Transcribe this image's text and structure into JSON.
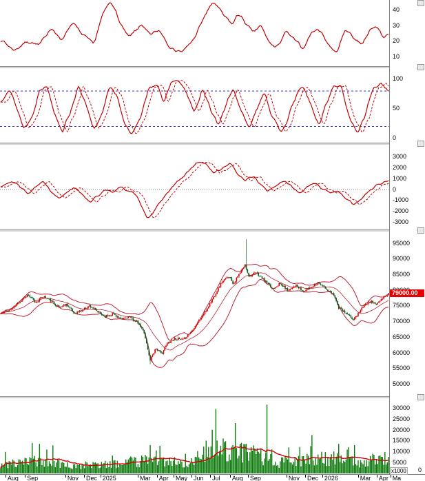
{
  "colors": {
    "line_red": "#c00000",
    "ref_blue": "#3333bb",
    "separator": "#909090",
    "axis_border": "#808080",
    "background": "#ffffff",
    "text": "#000000"
  },
  "price_label": {
    "text": "79000.00",
    "bg": "#e60000",
    "fg": "#ffffff"
  },
  "volume_axis": {
    "unit": "x1000",
    "zero": "0"
  },
  "x_axis": {
    "labels": [
      {
        "t": "Aug",
        "f": 0.014
      },
      {
        "t": "Sep",
        "f": 0.064
      },
      {
        "t": "Nov",
        "f": 0.168
      },
      {
        "t": "Dec",
        "f": 0.216
      },
      {
        "t": "2025",
        "f": 0.258
      },
      {
        "t": "Mar",
        "f": 0.354
      },
      {
        "t": "Apr",
        "f": 0.403
      },
      {
        "t": "May",
        "f": 0.446
      },
      {
        "t": "Jun",
        "f": 0.492
      },
      {
        "t": "Jul",
        "f": 0.54
      },
      {
        "t": "Aug",
        "f": 0.591
      },
      {
        "t": "Sep",
        "f": 0.637
      },
      {
        "t": "Nov",
        "f": 0.736
      },
      {
        "t": "Dec",
        "f": 0.784
      },
      {
        "t": "2026",
        "f": 0.828
      },
      {
        "t": "Mar",
        "f": 0.92
      },
      {
        "t": "Apr",
        "f": 0.968
      },
      {
        "t": "Ma",
        "f": 1.003
      }
    ]
  },
  "chart_data": [
    {
      "type": "line",
      "name": "momentum-indicator",
      "ylim": [
        4,
        46
      ],
      "ticks": [
        40,
        30,
        20,
        10
      ],
      "seed": 7,
      "series": [
        {
          "name": "main",
          "color": "#c00000",
          "width": 1.2,
          "noise": 1.6,
          "keys": [
            [
              0,
              21
            ],
            [
              0.035,
              14
            ],
            [
              0.07,
              20
            ],
            [
              0.1,
              17
            ],
            [
              0.13,
              29
            ],
            [
              0.155,
              20
            ],
            [
              0.185,
              32
            ],
            [
              0.21,
              24
            ],
            [
              0.24,
              18
            ],
            [
              0.265,
              38
            ],
            [
              0.285,
              46
            ],
            [
              0.31,
              30
            ],
            [
              0.33,
              22
            ],
            [
              0.36,
              30
            ],
            [
              0.385,
              24
            ],
            [
              0.41,
              27
            ],
            [
              0.44,
              15
            ],
            [
              0.47,
              13
            ],
            [
              0.5,
              22
            ],
            [
              0.53,
              38
            ],
            [
              0.55,
              45
            ],
            [
              0.575,
              36
            ],
            [
              0.6,
              30
            ],
            [
              0.61,
              38
            ],
            [
              0.63,
              32
            ],
            [
              0.65,
              25
            ],
            [
              0.67,
              30
            ],
            [
              0.69,
              20
            ],
            [
              0.71,
              15
            ],
            [
              0.735,
              26
            ],
            [
              0.76,
              20
            ],
            [
              0.78,
              15
            ],
            [
              0.8,
              25
            ],
            [
              0.82,
              28
            ],
            [
              0.845,
              18
            ],
            [
              0.865,
              12
            ],
            [
              0.89,
              28
            ],
            [
              0.91,
              22
            ],
            [
              0.93,
              18
            ],
            [
              0.95,
              26
            ],
            [
              0.97,
              30
            ],
            [
              0.985,
              22
            ],
            [
              1,
              25
            ]
          ]
        }
      ]
    },
    {
      "type": "line",
      "name": "stochastic-oscillator",
      "ylim": [
        -8,
        118
      ],
      "ticks": [
        100,
        50,
        0
      ],
      "ref_lines": [
        80,
        20
      ],
      "clamp": [
        2,
        98
      ],
      "seed": 13,
      "series": [
        {
          "name": "percent-k",
          "color": "#c00000",
          "width": 1.2,
          "noise": 5,
          "keys": [
            [
              0,
              60
            ],
            [
              0.02,
              85
            ],
            [
              0.04,
              55
            ],
            [
              0.06,
              15
            ],
            [
              0.08,
              35
            ],
            [
              0.1,
              80
            ],
            [
              0.12,
              90
            ],
            [
              0.14,
              40
            ],
            [
              0.16,
              10
            ],
            [
              0.18,
              45
            ],
            [
              0.2,
              88
            ],
            [
              0.22,
              55
            ],
            [
              0.24,
              12
            ],
            [
              0.26,
              40
            ],
            [
              0.28,
              85
            ],
            [
              0.3,
              75
            ],
            [
              0.32,
              20
            ],
            [
              0.34,
              8
            ],
            [
              0.36,
              30
            ],
            [
              0.38,
              85
            ],
            [
              0.4,
              92
            ],
            [
              0.42,
              60
            ],
            [
              0.44,
              95
            ],
            [
              0.46,
              97
            ],
            [
              0.48,
              75
            ],
            [
              0.5,
              40
            ],
            [
              0.52,
              85
            ],
            [
              0.54,
              50
            ],
            [
              0.56,
              20
            ],
            [
              0.58,
              55
            ],
            [
              0.6,
              85
            ],
            [
              0.62,
              45
            ],
            [
              0.64,
              15
            ],
            [
              0.66,
              50
            ],
            [
              0.68,
              80
            ],
            [
              0.7,
              35
            ],
            [
              0.72,
              10
            ],
            [
              0.74,
              30
            ],
            [
              0.76,
              70
            ],
            [
              0.78,
              88
            ],
            [
              0.8,
              55
            ],
            [
              0.82,
              20
            ],
            [
              0.84,
              60
            ],
            [
              0.86,
              90
            ],
            [
              0.88,
              85
            ],
            [
              0.9,
              30
            ],
            [
              0.92,
              10
            ],
            [
              0.94,
              40
            ],
            [
              0.96,
              85
            ],
            [
              0.98,
              90
            ],
            [
              1,
              80
            ]
          ]
        },
        {
          "name": "percent-d",
          "color": "#c00000",
          "width": 1,
          "dash": [
            3,
            2
          ],
          "lag": 4
        }
      ]
    },
    {
      "type": "line",
      "name": "macd",
      "ylim": [
        -3700,
        4100
      ],
      "ticks": [
        3000,
        2000,
        1000,
        0,
        -1000,
        -2000,
        -3000
      ],
      "zero_line": true,
      "seed": 29,
      "series": [
        {
          "name": "macd-line",
          "color": "#c00000",
          "width": 1.2,
          "noise": 160,
          "keys": [
            [
              0,
              300
            ],
            [
              0.03,
              800
            ],
            [
              0.05,
              200
            ],
            [
              0.07,
              -400
            ],
            [
              0.09,
              300
            ],
            [
              0.11,
              700
            ],
            [
              0.13,
              -200
            ],
            [
              0.15,
              -800
            ],
            [
              0.17,
              -300
            ],
            [
              0.19,
              200
            ],
            [
              0.21,
              -500
            ],
            [
              0.23,
              -1200
            ],
            [
              0.25,
              -600
            ],
            [
              0.27,
              0
            ],
            [
              0.29,
              -300
            ],
            [
              0.31,
              200
            ],
            [
              0.33,
              -200
            ],
            [
              0.35,
              -500
            ],
            [
              0.38,
              -2800
            ],
            [
              0.41,
              -1200
            ],
            [
              0.43,
              -300
            ],
            [
              0.45,
              500
            ],
            [
              0.48,
              1500
            ],
            [
              0.51,
              2500
            ],
            [
              0.53,
              2300
            ],
            [
              0.55,
              1500
            ],
            [
              0.57,
              1800
            ],
            [
              0.59,
              2400
            ],
            [
              0.61,
              1500
            ],
            [
              0.63,
              800
            ],
            [
              0.65,
              1200
            ],
            [
              0.67,
              500
            ],
            [
              0.69,
              -200
            ],
            [
              0.71,
              300
            ],
            [
              0.73,
              800
            ],
            [
              0.75,
              300
            ],
            [
              0.77,
              -300
            ],
            [
              0.79,
              200
            ],
            [
              0.81,
              600
            ],
            [
              0.83,
              100
            ],
            [
              0.85,
              -400
            ],
            [
              0.87,
              -200
            ],
            [
              0.89,
              -800
            ],
            [
              0.91,
              -1500
            ],
            [
              0.93,
              -800
            ],
            [
              0.95,
              -200
            ],
            [
              0.97,
              400
            ],
            [
              1,
              800
            ]
          ]
        },
        {
          "name": "signal-line",
          "color": "#c00000",
          "width": 1,
          "dash": [
            3,
            2
          ],
          "lag": 5
        }
      ]
    },
    {
      "type": "candlestick",
      "name": "price",
      "ylim": [
        46000,
        98700
      ],
      "ticks": [
        95000,
        90000,
        85000,
        80000,
        75000,
        70000,
        65000,
        60000,
        55000,
        50000
      ],
      "last_price": 79000,
      "up_color": "#d20000",
      "down_color": "#0c5a1e",
      "band_color": "#bb2233",
      "bollinger": {
        "window": 20,
        "k": 2
      },
      "wick_events": [
        {
          "frac": 0.633,
          "high": 96200
        },
        {
          "frac": 0.386,
          "low": 56200
        }
      ],
      "seed": 11,
      "price_keys": [
        [
          0,
          72500
        ],
        [
          0.03,
          74000
        ],
        [
          0.05,
          76500
        ],
        [
          0.07,
          78500
        ],
        [
          0.09,
          76000
        ],
        [
          0.11,
          78000
        ],
        [
          0.13,
          76500
        ],
        [
          0.15,
          74500
        ],
        [
          0.17,
          75500
        ],
        [
          0.19,
          72500
        ],
        [
          0.21,
          73500
        ],
        [
          0.23,
          75000
        ],
        [
          0.25,
          73000
        ],
        [
          0.27,
          71500
        ],
        [
          0.29,
          72500
        ],
        [
          0.31,
          70500
        ],
        [
          0.33,
          71500
        ],
        [
          0.35,
          70000
        ],
        [
          0.37,
          66500
        ],
        [
          0.385,
          57500
        ],
        [
          0.4,
          61500
        ],
        [
          0.415,
          59500
        ],
        [
          0.43,
          63000
        ],
        [
          0.45,
          64500
        ],
        [
          0.47,
          64000
        ],
        [
          0.49,
          66500
        ],
        [
          0.51,
          70000
        ],
        [
          0.53,
          73500
        ],
        [
          0.55,
          78000
        ],
        [
          0.57,
          82500
        ],
        [
          0.59,
          84500
        ],
        [
          0.6,
          82000
        ],
        [
          0.62,
          86000
        ],
        [
          0.63,
          88000
        ],
        [
          0.64,
          84500
        ],
        [
          0.66,
          85500
        ],
        [
          0.68,
          83000
        ],
        [
          0.7,
          80500
        ],
        [
          0.72,
          82000
        ],
        [
          0.74,
          80000
        ],
        [
          0.76,
          81500
        ],
        [
          0.78,
          79500
        ],
        [
          0.8,
          81000
        ],
        [
          0.82,
          82500
        ],
        [
          0.84,
          80000
        ],
        [
          0.86,
          78500
        ],
        [
          0.87,
          74500
        ],
        [
          0.89,
          72500
        ],
        [
          0.91,
          70500
        ],
        [
          0.93,
          74000
        ],
        [
          0.95,
          76500
        ],
        [
          0.97,
          75500
        ],
        [
          1,
          79000
        ]
      ]
    },
    {
      "type": "bar",
      "name": "volume",
      "ylim": [
        0,
        34400
      ],
      "ticks": [
        30000,
        25000,
        20000,
        15000,
        10000,
        5000
      ],
      "unit": "x1000",
      "bar_color": "#0a7a0a",
      "ma_color": "#d20000",
      "ma_window": 25,
      "seed": 23,
      "keys": [
        [
          0,
          4000
        ],
        [
          0.05,
          4500
        ],
        [
          0.09,
          6500
        ],
        [
          0.12,
          5000
        ],
        [
          0.2,
          3800
        ],
        [
          0.3,
          4200
        ],
        [
          0.36,
          5500
        ],
        [
          0.4,
          7500
        ],
        [
          0.44,
          5500
        ],
        [
          0.48,
          5000
        ],
        [
          0.52,
          8000
        ],
        [
          0.56,
          12000
        ],
        [
          0.6,
          9000
        ],
        [
          0.64,
          9500
        ],
        [
          0.68,
          7000
        ],
        [
          0.72,
          5000
        ],
        [
          0.76,
          5500
        ],
        [
          0.79,
          7500
        ],
        [
          0.82,
          6500
        ],
        [
          0.86,
          7000
        ],
        [
          0.88,
          6500
        ],
        [
          0.92,
          5000
        ],
        [
          0.96,
          6000
        ],
        [
          1,
          7500
        ]
      ],
      "spikes": [
        [
          0.1,
          13500
        ],
        [
          0.385,
          13000
        ],
        [
          0.4,
          10500
        ],
        [
          0.475,
          9000
        ],
        [
          0.53,
          15000
        ],
        [
          0.545,
          20000
        ],
        [
          0.555,
          29500
        ],
        [
          0.575,
          16000
        ],
        [
          0.6,
          13000
        ],
        [
          0.62,
          14000
        ],
        [
          0.645,
          12000
        ],
        [
          0.685,
          31500
        ],
        [
          0.7,
          11000
        ],
        [
          0.8,
          12500
        ],
        [
          0.87,
          13500
        ],
        [
          0.895,
          12000
        ],
        [
          0.96,
          9000
        ]
      ]
    }
  ]
}
